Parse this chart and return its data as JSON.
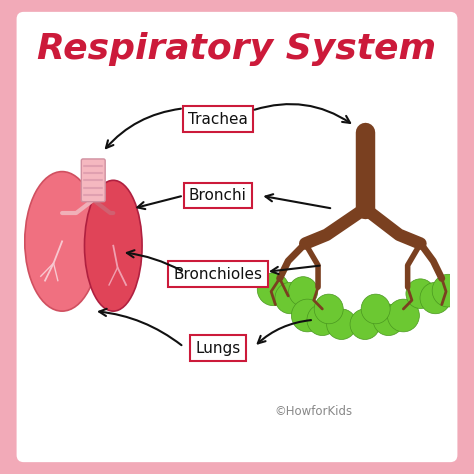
{
  "title": "Respiratory System",
  "title_color": "#cc1a3a",
  "title_fontsize": 26,
  "background_outer": "#f2aab8",
  "background_inner": "#ffffff",
  "labels": [
    "Trachea",
    "Bronchi",
    "Bronchioles",
    "Lungs"
  ],
  "label_box_color": "#ffffff",
  "label_box_edge": "#cc1a3a",
  "label_text_color": "#111111",
  "label_fontsize": 11,
  "watermark": "©HowforKids",
  "watermark_color": "#888888",
  "arrow_color": "#111111",
  "lung_left_color": "#f07080",
  "lung_right_color": "#e04458",
  "trachea_tube_color": "#f5b8c0",
  "tree_brown": "#7a4020",
  "green_blob": "#6cc832",
  "green_blob_edge": "#4a9820"
}
